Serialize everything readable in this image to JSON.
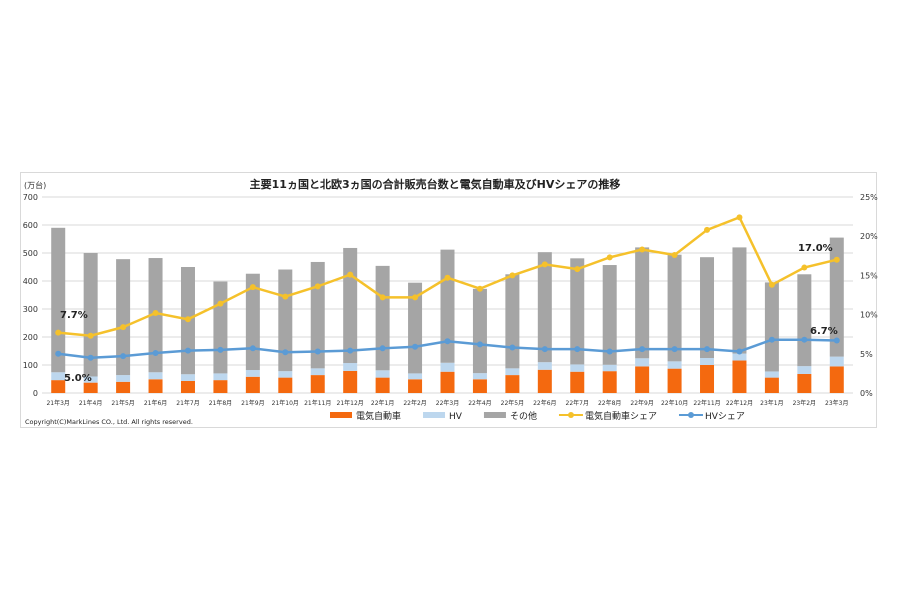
{
  "chart_data": {
    "type": "bar+line",
    "title": "主要11ヵ国と北欧3ヵ国の合計販売台数と電気自動車及びHVシェアの推移",
    "ylabel": "(万台)",
    "ylim": [
      0,
      700
    ],
    "y2lim": [
      0,
      25
    ],
    "yticks": [
      "0",
      "100",
      "200",
      "300",
      "400",
      "500",
      "600",
      "700"
    ],
    "y2ticks": [
      "0%",
      "5%",
      "10%",
      "15%",
      "20%",
      "25%"
    ],
    "grid": true,
    "legend_position": "bottom",
    "categories": [
      "21年3月",
      "21年4月",
      "21年5月",
      "21年6月",
      "21年7月",
      "21年8月",
      "21年9月",
      "21年10月",
      "21年11月",
      "21年12月",
      "22年1月",
      "22年2月",
      "22年3月",
      "22年4月",
      "22年5月",
      "22年6月",
      "22年7月",
      "22年8月",
      "22年9月",
      "22年10月",
      "22年11月",
      "22年12月",
      "23年1月",
      "23年2月",
      "23年3月"
    ],
    "series": [
      {
        "name": "電気自動車",
        "kind": "stacked-bar",
        "axis": "left",
        "color": "#f4690f",
        "values": [
          46,
          37,
          40,
          49,
          43,
          46,
          58,
          55,
          64,
          79,
          55,
          49,
          76,
          49,
          64,
          83,
          76,
          78,
          95,
          87,
          100,
          116,
          55,
          68,
          95
        ]
      },
      {
        "name": "HV",
        "kind": "stacked-bar",
        "axis": "left",
        "color": "#bdd7ee",
        "values": [
          28,
          22,
          24,
          25,
          24,
          24,
          24,
          23,
          24,
          28,
          26,
          21,
          32,
          22,
          24,
          27,
          26,
          23,
          29,
          26,
          25,
          25,
          22,
          28,
          35
        ]
      },
      {
        "name": "その他",
        "kind": "stacked-bar",
        "axis": "left",
        "color": "#a5a5a5",
        "values": [
          516,
          441,
          414,
          408,
          383,
          328,
          344,
          363,
          380,
          411,
          373,
          324,
          404,
          301,
          336,
          393,
          379,
          356,
          396,
          381,
          360,
          379,
          318,
          328,
          425
        ]
      },
      {
        "name": "電気自動車シェア",
        "kind": "line",
        "axis": "right",
        "color": "#f5c12b",
        "values": [
          7.7,
          7.3,
          8.4,
          10.2,
          9.4,
          11.4,
          13.5,
          12.3,
          13.6,
          15.1,
          12.2,
          12.2,
          14.7,
          13.3,
          15.0,
          16.4,
          15.8,
          17.3,
          18.3,
          17.6,
          20.8,
          22.4,
          13.8,
          16.0,
          17.0
        ]
      },
      {
        "name": "HVシェア",
        "kind": "line",
        "axis": "right",
        "color": "#5b9bd5",
        "values": [
          5.0,
          4.5,
          4.7,
          5.1,
          5.4,
          5.5,
          5.7,
          5.2,
          5.3,
          5.4,
          5.7,
          5.9,
          6.6,
          6.2,
          5.8,
          5.6,
          5.6,
          5.3,
          5.6,
          5.6,
          5.6,
          5.3,
          6.8,
          6.8,
          6.7
        ]
      }
    ],
    "annotations": [
      "7.7%",
      "5.0%",
      "17.0%",
      "6.7%"
    ]
  },
  "copyright": "Copyright(C)MarkLines CO., Ltd. All rights reserved."
}
